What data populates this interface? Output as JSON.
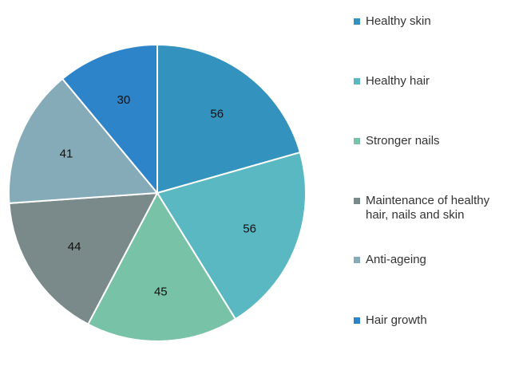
{
  "chart_data": {
    "type": "pie",
    "title": "",
    "values": [
      56,
      56,
      45,
      44,
      41,
      30
    ],
    "categories": [
      "Healthy skin",
      "Healthy hair",
      "Stronger nails",
      "Maintenance of healthy hair, nails and skin",
      "Anti-ageing",
      "Hair growth"
    ],
    "colors": [
      "#3493be",
      "#5ab8c3",
      "#78c2a7",
      "#7a8a8a",
      "#86abb8",
      "#2d84c8"
    ],
    "data_labels": [
      "56",
      "56",
      "45",
      "44",
      "41",
      "30"
    ],
    "legend_position": "right",
    "start_angle": "top, clockwise"
  }
}
